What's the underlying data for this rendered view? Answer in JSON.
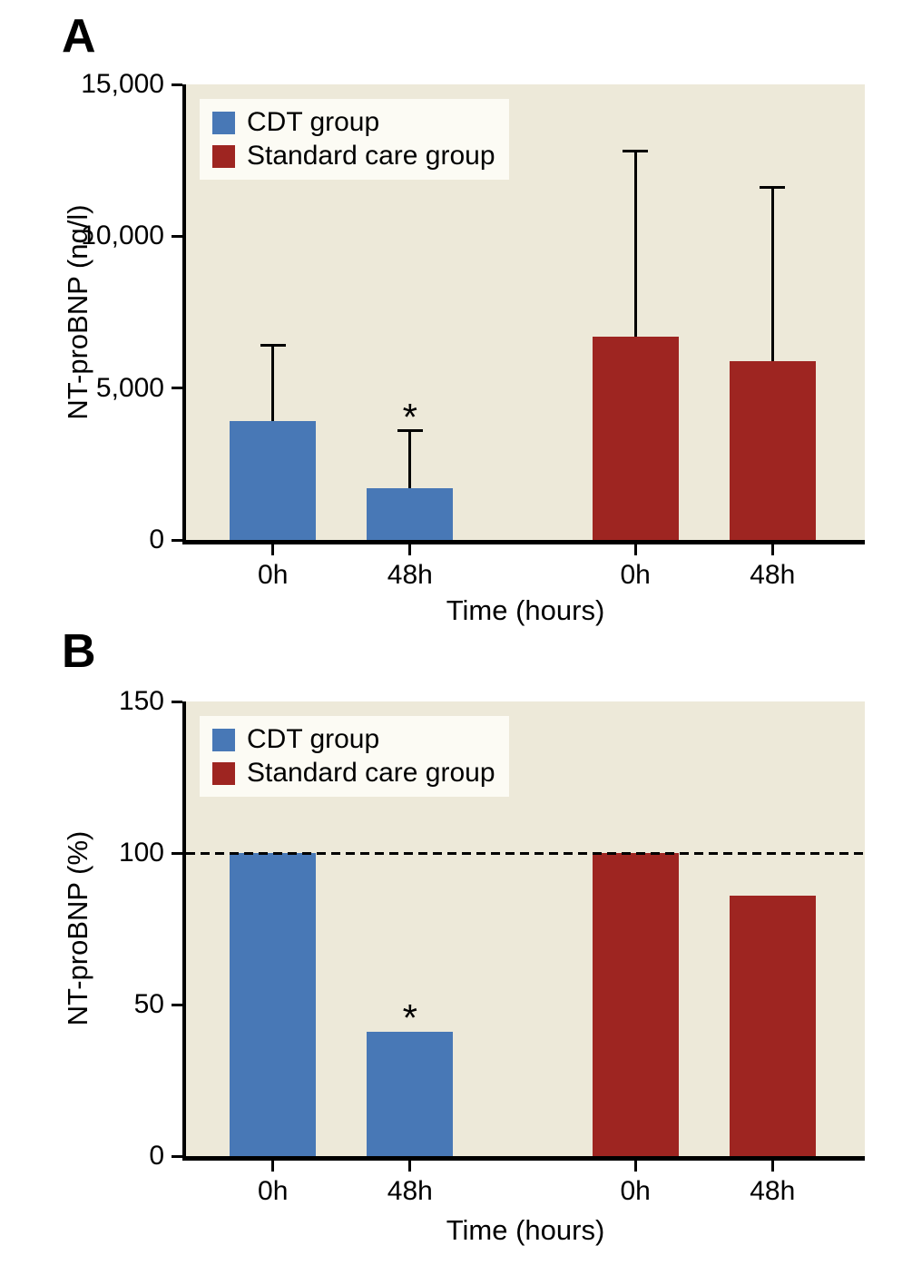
{
  "colors": {
    "plot_background": "#EDE9D9",
    "legend_background": "#FCFBF4",
    "axis": "#000000",
    "cdt_blue": "#4878B6",
    "standard_red": "#9E2521"
  },
  "chart_data": [
    {
      "type": "bar",
      "panel_label": "A",
      "title": "",
      "ylabel": "NT-proBNP (ng/l)",
      "xlabel": "Time (hours)",
      "ylim": [
        0,
        15000
      ],
      "yticks": [
        {
          "value": 0,
          "label": "0"
        },
        {
          "value": 5000,
          "label": "5,000"
        },
        {
          "value": 10000,
          "label": "10,000"
        },
        {
          "value": 15000,
          "label": "15,000"
        }
      ],
      "categories": [
        "0h",
        "48h",
        "0h",
        "48h"
      ],
      "series": [
        {
          "name": "CDT group",
          "color": "#4878B6",
          "values": [
            3900,
            1700
          ],
          "whisker_tops": [
            6400,
            3600
          ]
        },
        {
          "name": "Standard care group",
          "color": "#9E2521",
          "values": [
            6700,
            5900
          ],
          "whisker_tops": [
            12800,
            11600
          ]
        }
      ],
      "annotations": [
        {
          "text": "*",
          "slot": 1,
          "at_value": 3600
        }
      ],
      "legend_position": "top-left",
      "grid": false
    },
    {
      "type": "bar",
      "panel_label": "B",
      "title": "",
      "ylabel": "NT-proBNP (%)",
      "xlabel": "Time (hours)",
      "ylim": [
        0,
        150
      ],
      "yticks": [
        {
          "value": 0,
          "label": "0"
        },
        {
          "value": 50,
          "label": "50"
        },
        {
          "value": 100,
          "label": "100"
        },
        {
          "value": 150,
          "label": "150"
        }
      ],
      "categories": [
        "0h",
        "48h",
        "0h",
        "48h"
      ],
      "series": [
        {
          "name": "CDT group",
          "color": "#4878B6",
          "values": [
            100,
            41
          ]
        },
        {
          "name": "Standard care group",
          "color": "#9E2521",
          "values": [
            100,
            86
          ]
        }
      ],
      "annotations": [
        {
          "text": "*",
          "slot": 1,
          "at_value": 41
        }
      ],
      "reference_line": 100,
      "legend_position": "top-left",
      "grid": false
    }
  ]
}
